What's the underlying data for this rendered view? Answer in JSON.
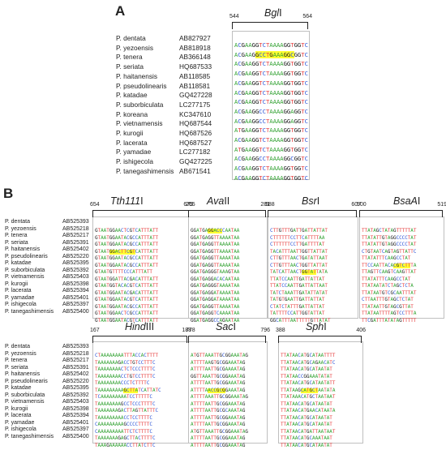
{
  "panel_a": {
    "label": "A",
    "enzyme": "BglI",
    "range": [
      "544",
      "564"
    ],
    "rows": [
      {
        "species": "P. dentata",
        "acc": "AB827927",
        "seq": "ACGAAGGTCTAAAAGGTGGTC"
      },
      {
        "species": "P. yezoensis",
        "acc": "AB818918",
        "seq": "ACGAAGGCCTGAAAGGCGGTC",
        "hl": [
          6,
          17
        ]
      },
      {
        "species": "P. tenera",
        "acc": "AB366148",
        "seq": "ACGAAGGTCTAAAAGGTGGTC"
      },
      {
        "species": "P. seriata",
        "acc": "HQ687533",
        "seq": "ACGAAGGTCTAAAAGGTGGTC"
      },
      {
        "species": "P. haitanensis",
        "acc": "AB118585",
        "seq": "ACGAAGGTCTAAAAGGTGGTC"
      },
      {
        "species": "P. pseudolinearis",
        "acc": "AB118581",
        "seq": "ACGAAGGTCTAAAAGGTGGTC"
      },
      {
        "species": "P. katadae",
        "acc": "GQ427228",
        "seq": "ACGAAGGTCTAAAAGGTGGTC"
      },
      {
        "species": "P. suborbiculata",
        "acc": "LC277175",
        "seq": "ACGAAGGCCTAAAAGGAGGTC"
      },
      {
        "species": "P. koreana",
        "acc": "KC347610",
        "seq": "ACGAAGGCCTAAAAGGAGGTC"
      },
      {
        "species": "P. vietnamensis",
        "acc": "HQ687544",
        "seq": "ATGAAGGTCTAAAAGGTGGTC"
      },
      {
        "species": "P. kurogii",
        "acc": "HQ687526",
        "seq": "ACGAAGGTCTAAAAGGTGGTC"
      },
      {
        "species": "P. lacerata",
        "acc": "HQ687527",
        "seq": "ATGAAGGTCTAAAAGGTGGTC"
      },
      {
        "species": "P. yamadae",
        "acc": "LC277182",
        "seq": "ACGAAGGCCTAAAAGGCGGTC"
      },
      {
        "species": "P. ishigecola",
        "acc": "GQ427225",
        "seq": "ACGAAGGTCTAAAAGGTGGTC"
      },
      {
        "species": "P. tanegashimensis",
        "acc": "AB671541",
        "seq": "ACGAAGGTCTAAAAGGTGGTC"
      }
    ]
  },
  "panel_b": {
    "label": "B",
    "species": [
      "P. dentata",
      "P. yezoensis",
      "P. tenera",
      "P. seriata",
      "P. haitanensis",
      "P. pseudolinearis",
      "P. katadae",
      "P. suborbiculata",
      "P. vietnamensis",
      "P. kurogii",
      "P. lacerata",
      "P. yamadae",
      "P. ishigecola",
      "P. tanegashimensis"
    ],
    "accessions": [
      "AB525393",
      "AB525218",
      "AB525217",
      "AB525391",
      "AB525402",
      "AB525220",
      "AB525395",
      "AB525392",
      "AB525403",
      "AB525398",
      "AB525394",
      "AB525401",
      "AB525397",
      "AB525400"
    ],
    "top_blocks": [
      {
        "enzyme": "Tth111I",
        "range": [
          "654",
          "675"
        ],
        "hl_row": 3,
        "hl": [
          5,
          14
        ],
        "seqs": [
          "GTAATGGAACTCGTCATTTATT",
          "GTAATGGAATACGCCATTTATT",
          "GTAATGGAATACGCCATTTATT",
          "GTAATGGACTTCGTCATTTATT",
          "GTAATGGAATACGCCATTTATT",
          "GTAATGGAATACGCCATTTATT",
          "GTAATGTTTTCCCATTTATT",
          "GTAATGGATTACGACATTTATT",
          "GTAATGGTACACGTCATTTATT",
          "GTAATGGAATACGACATTTATT",
          "GTAATGGAATACGTCATTTATT",
          "GTAATGGAATACGCCATTTATT",
          "GTAATGGAACTCGCCATTTATT",
          "GTAATGGAATACGTCATTTATT"
        ]
      },
      {
        "enzyme": "AvaII",
        "range": [
          "265",
          "281"
        ],
        "hl_row": 0,
        "hl": [
          6,
          11
        ],
        "seqs": [
          "GGATGAGGACCCAATAA",
          "GGATGAGGTTAAAATAA",
          "GGATGAGGTTAAAATAA",
          "GGATGAGGTTAAAATAA",
          "GGATGAGGTTAAAATAA",
          "GGATGAGGTTAAAATAA",
          "GGATGAGGGTAAAGTAA",
          "GGATGAGGACACAATAA",
          "GGATGAGGGTAAAATAA",
          "GGATGAGGATAAAATAA",
          "GGATGAGGATAAAATAA",
          "GGATGAGGTTAAAATAA",
          "GGATGAGGTCAAAATAA",
          "GGATGAGGCCAGAATAA"
        ]
      },
      {
        "enzyme": "BsrI",
        "range": [
          "588",
          "607"
        ],
        "hl_row": 6,
        "hl": [
          11,
          16
        ],
        "seqs": [
          "CTTGTTTGATTGATTATTAT",
          "CTTTTTTCCTTCATTTTAA",
          "CTTTTTTCCTTGATTTTAT",
          "TACATTTAATTGGTTATTAT",
          "CTTGTTTAACTGATATTAAT",
          "CTTGTTTAACTGGTTATTAT",
          "TATCATTAACTGGTATTATA",
          "TTATCCAATTGATTATTAT",
          "TTATCCAATTGATTATTAAT",
          "TATCTAAATTGATATTATAT",
          "TATGTGAATTGATTATTAT",
          "CTATCTATTTGATTATTAT",
          "TATTTTCCATTGGTATTAT",
          "GGCATTTAATTTTTGTTATAT"
        ]
      },
      {
        "enzyme": "BsaAI",
        "range": [
          "500",
          "519"
        ],
        "hl_row": 5,
        "hl": [
          11,
          17
        ],
        "seqs": [
          "TTATAGCTATAGTTTTTAT",
          "TTATATTGTAGGCCCCTAT",
          "TTATATTGTAGGCCCCTAT",
          "CTGTAATCAGTAGTTATTC",
          "TTATATTTCAAGCCTAT",
          "TTCCAATTACACGTCTTTA",
          "TTAGTTCAAGTCAAGTTAT",
          "TTATATTTCAAGCCTAT",
          "TTATAATATCTAGCTCTA",
          "TTATAATGTCGCAATTTAT",
          "CTTAATTTGTAGCTCTAT",
          "TTATAATTGTAGCGTTAT",
          "TTATAATTTTAGTCCTTTA",
          "TTCGATTTATATAGTTTTT"
        ]
      }
    ],
    "bottom_blocks": [
      {
        "enzyme": "HindIII",
        "range": [
          "167",
          "188"
        ],
        "hl_row": 5,
        "hl": [
          10,
          15
        ],
        "seqs": [
          "CTAAAAAAAATTTACCACTTTT",
          "TAAAAAAAGACCTGTCCTTTC",
          "TAAAAAAAACTCTCCCTTTTC",
          "TAAAAAAAACCTGTCCTTTTC",
          "TAAAAAAAACCCTCTTTTC",
          "TAAAAAAAAAGCTTATCATTATC",
          "TCAAAAAAAAATCCTTTTTC",
          "TAAAAAAAAGCCTCCCTTTTC",
          "TAAAAAAAGACTTAGTTATTTC",
          "TAAAAAAAAACCTCCTTTTC",
          "CAAAAAAAAAGCCCCTTTTC",
          "CAAAAAAAAATTCTCTTTTC",
          "TAAAAAAAGAGCTTACTTTTC",
          "TAAAGAAAAAACCTTATCTTC"
        ]
      },
      {
        "enzyme": "SacI",
        "range": [
          "778",
          "796"
        ],
        "hl_row": 5,
        "hl": [
          6,
          12
        ],
        "seqs": [
          "ATGTTAAATTGCGGAAATAG",
          "ATTTTAAGTGCGGAAATAG",
          "ATTTTAATTGCGAAAATAG",
          "GGTTAAATTGCGGAAATAG",
          "ATTTTAATTGCGGAAATAG",
          "ATTTTAACCGCGGAAATAG",
          "ATTTTAAATTGCGGAAATAG",
          "ATTTTAATTGCGGAAATAG",
          "ATTTTAATTGCGCAAATAG",
          "ATTTTAATTGCGGAAATAG",
          "ATTTTAATTGCGGAAATAG",
          "ATGTTAAATTGCGGAAATAG",
          "ATTTTAATTGCGGAAATAG",
          "ATTTTAATTGCGGAAATAG"
        ]
      },
      {
        "enzyme": "SphI",
        "range": [
          "388",
          "406"
        ],
        "hl_row": 5,
        "hl": [
          7,
          13
        ],
        "seqs": [
          "TTATAACATGCATAATTTT",
          "TTATAACATGCAGAACATC",
          "TTATAACATGCATAATAT",
          "TTATAACCGGAAATATAT",
          "TTATAACATGCATAATATT",
          "TTATAAGCATGCTAATATA",
          "TTATAAACATGCTAATAAT",
          "TTATAACATGCATAATAT",
          "TTATAACATGAACATAATA",
          "TTATAACATGCATAATAT",
          "TTATAACATGCATAATAT",
          "TTATAACATGATTAATAAT",
          "TTATAACATGCAAATAAT",
          "TTATAACATGCATAATAT"
        ]
      }
    ]
  }
}
